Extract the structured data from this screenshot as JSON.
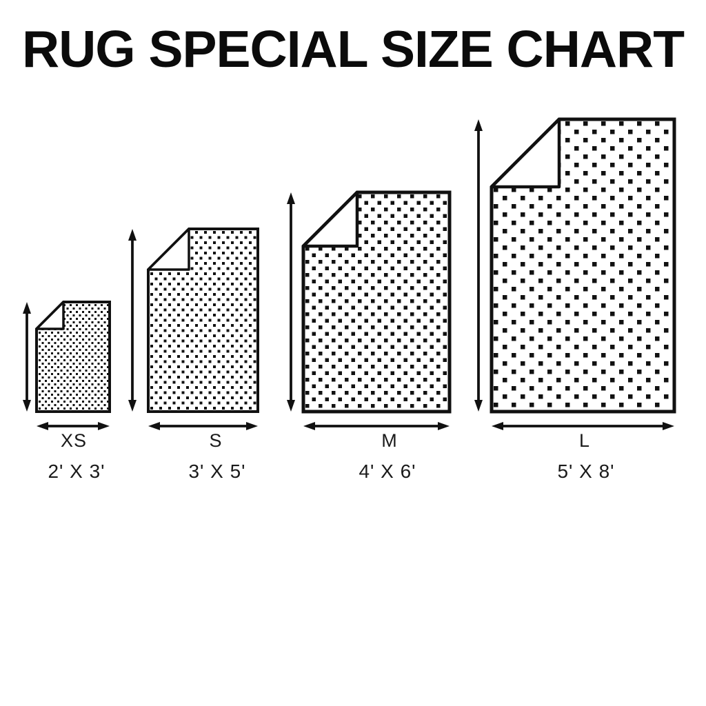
{
  "title": "RUG SPECIAL SIZE CHART",
  "colors": {
    "ink": "#111111",
    "paper": "#ffffff"
  },
  "rugs": [
    {
      "size": "XS",
      "dimensions": "2' X 3'",
      "width_ft": 2,
      "height_ft": 3
    },
    {
      "size": "S",
      "dimensions": "3' X 5'",
      "width_ft": 3,
      "height_ft": 5
    },
    {
      "size": "M",
      "dimensions": "4' X 6'",
      "width_ft": 4,
      "height_ft": 6
    },
    {
      "size": "L",
      "dimensions": "5' X 8'",
      "width_ft": 5,
      "height_ft": 8
    }
  ],
  "chart_data": {
    "type": "table",
    "title": "RUG SPECIAL SIZE CHART",
    "unit": "feet",
    "categories": [
      "XS",
      "S",
      "M",
      "L"
    ],
    "series": [
      {
        "name": "width_ft",
        "values": [
          2,
          3,
          4,
          5
        ]
      },
      {
        "name": "height_ft",
        "values": [
          3,
          5,
          6,
          8
        ]
      }
    ],
    "dimension_labels": [
      "2' X 3'",
      "3' X 5'",
      "4' X 6'",
      "5' X 8'"
    ]
  }
}
